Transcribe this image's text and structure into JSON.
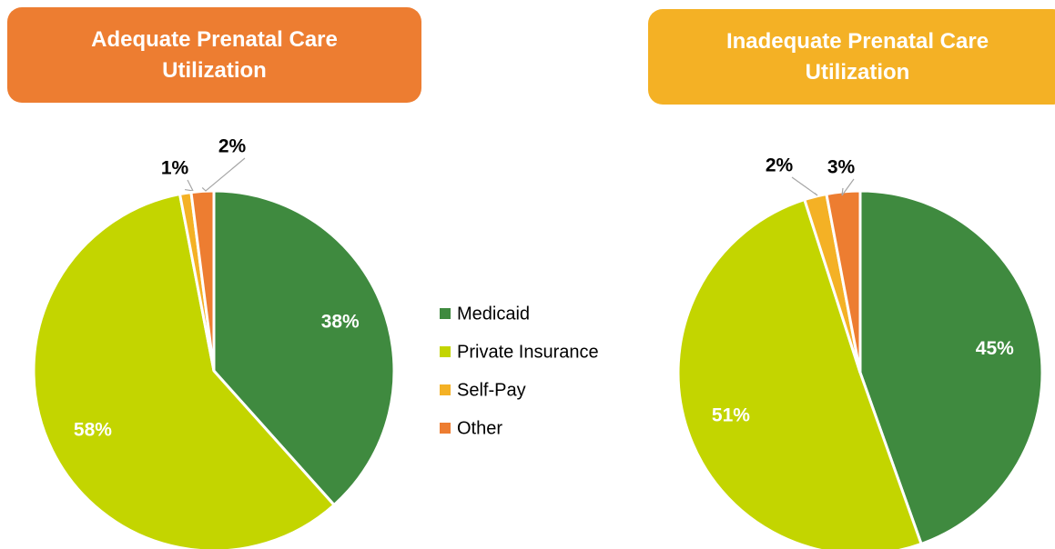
{
  "chart_data": [
    {
      "type": "pie",
      "title": "Adequate Prenatal Care Utilization",
      "values": [
        38,
        58,
        1,
        2
      ],
      "value_labels": [
        "38%",
        "58%",
        "1%",
        "2%"
      ]
    },
    {
      "type": "pie",
      "title": "Inadequate Prenatal Care Utilization",
      "values": [
        45,
        51,
        2,
        3
      ],
      "value_labels": [
        "45%",
        "51%",
        "2%",
        "3%"
      ]
    }
  ],
  "legend": {
    "items": [
      "Medicaid",
      "Private Insurance",
      "Self-Pay",
      "Other"
    ],
    "colors": [
      "#3f8a3f",
      "#c3d500",
      "#f4b125",
      "#ed7d31"
    ]
  },
  "title_colors": [
    "#ed7d31",
    "#f4b125"
  ]
}
